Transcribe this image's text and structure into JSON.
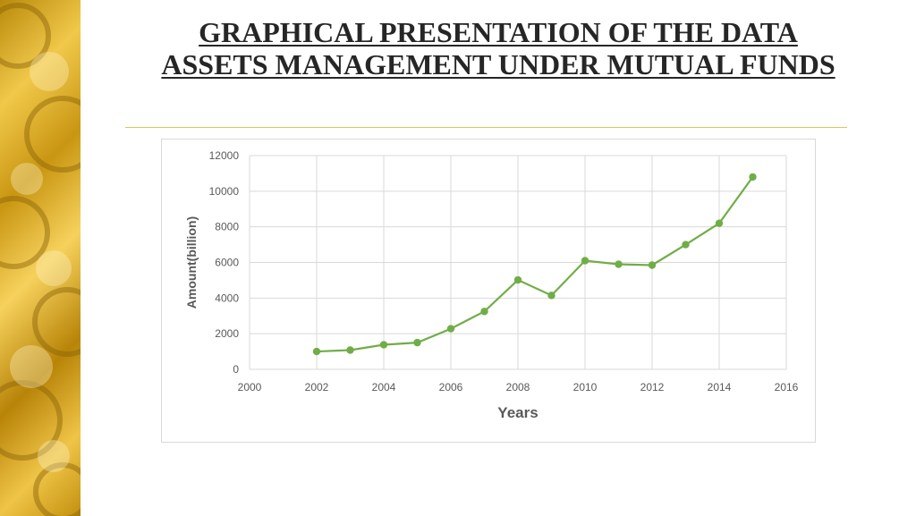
{
  "slide": {
    "title_line1": "GRAPHICAL PRESENTATION OF THE DATA",
    "title_line2": "ASSETS MANAGEMENT UNDER MUTUAL FUNDS"
  },
  "colors": {
    "series": "#70ad47",
    "accent_rule": "#e3c25b",
    "side_panel": "#d9a520"
  },
  "chart_data": {
    "type": "scatter",
    "title": "",
    "xlabel": "Years",
    "ylabel": "Amount(billion)",
    "xlim": [
      2000,
      2016
    ],
    "ylim": [
      0,
      12000
    ],
    "xticks": [
      2000,
      2002,
      2004,
      2006,
      2008,
      2010,
      2012,
      2014,
      2016
    ],
    "yticks": [
      0,
      2000,
      4000,
      6000,
      8000,
      10000,
      12000
    ],
    "grid": true,
    "legend": "none",
    "series": [
      {
        "x": [
          2002,
          2003,
          2004,
          2005,
          2006,
          2007,
          2008,
          2009,
          2010,
          2011,
          2012,
          2013,
          2014,
          2015
        ],
        "y": [
          1000,
          1080,
          1380,
          1500,
          2280,
          3250,
          5020,
          4150,
          6100,
          5900,
          5850,
          7000,
          8200,
          10800
        ]
      }
    ]
  }
}
